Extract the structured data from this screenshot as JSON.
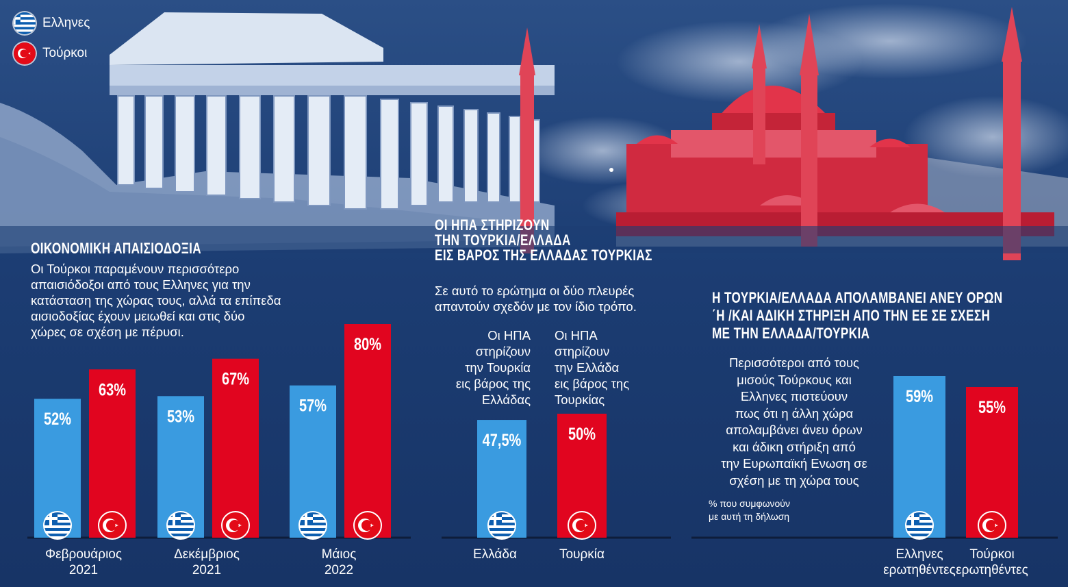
{
  "legend": {
    "greeks": "Ελληνες",
    "turks": "Τούρκοι"
  },
  "colors": {
    "greek_blue": "#3a9be0",
    "turkish_red": "#e1051f",
    "background": "#1a3a6e"
  },
  "section1": {
    "title": "ΟΙΚΟΝΟΜΙΚΗ ΑΠΑΙΣΙΟΔΟΞΙΑ",
    "text_lines": [
      "Οι Τούρκοι παραμένουν περισσότερο",
      "απαισιόδοξοι από τους Ελληνες για την",
      "κατάσταση της χώρας τους, αλλά τα επίπεδα",
      "αισιοδοξίας έχουν μειωθεί και στις δύο",
      "χώρες σε σχέση με πέρυσι."
    ]
  },
  "section2": {
    "title_lines": [
      "ΟΙ ΗΠΑ ΣΤΗΡΙΖΟΥΝ",
      "ΤΗΝ ΤΟΥΡΚΙΑ/ΕΛΛΑΔΑ",
      "ΕΙΣ ΒΑΡΟΣ ΤΗΣ ΕΛΛΑΔΑΣ ΤΟΥΡΚΙΑΣ"
    ],
    "text_lines": [
      "Σε αυτό το ερώτημα οι δύο πλευρές",
      "απαντούν σχεδόν με τον ίδιο τρόπο."
    ],
    "caption_greece": [
      "Οι ΗΠΑ",
      "στηρίζουν",
      "την Τουρκία",
      "εις βάρος της",
      "Ελλάδας"
    ],
    "caption_turkey": [
      "Οι ΗΠΑ",
      "στηρίζουν",
      "την Ελλάδα",
      "εις βάρος της",
      "Τουρκίας"
    ]
  },
  "section3": {
    "title_lines": [
      "Η ΤΟΥΡΚΙΑ/ΕΛΛΑΔΑ ΑΠΟΛΑΜΒΑΝΕΙ ΑΝΕΥ ΟΡΩΝ",
      "΄Η /ΚΑΙ ΑΔΙΚΗ ΣΤΗΡΙΞΗ ΑΠΟ ΤΗΝ ΕΕ ΣΕ ΣΧΕΣΗ",
      "ΜΕ ΤΗΝ ΕΛΛΑΔΑ/ΤΟΥΡΚΙΑ"
    ],
    "text_lines": [
      "Περισσότεροι από τους",
      "μισούς Τούρκους και",
      "Ελληνες πιστεύουν",
      "πως ότι η άλλη χώρα",
      "απολαμβάνει άνευ όρων",
      "και άδικη στήριξη από",
      "την Ευρωπαϊκή Ενωση σε",
      "σχέση με τη χώρα τους"
    ],
    "note_lines": [
      "% που συμφωνούν",
      "με αυτή τη δήλωση"
    ]
  },
  "chart_data": [
    {
      "type": "bar",
      "categories": [
        [
          "Φεβρουάριος",
          "2021"
        ],
        [
          "Δεκέμβριος",
          "2021"
        ],
        [
          "Μάιος",
          "2022"
        ]
      ],
      "series": [
        {
          "name": "Ελληνες",
          "values": [
            52,
            53,
            57
          ],
          "labels": [
            "52%",
            "53%",
            "57%"
          ]
        },
        {
          "name": "Τούρκοι",
          "values": [
            63,
            67,
            80
          ],
          "labels": [
            "63%",
            "67%",
            "80%"
          ]
        }
      ]
    },
    {
      "type": "bar",
      "categories": [
        "Ελλάδα",
        "Τουρκία"
      ],
      "values": [
        47.5,
        50
      ],
      "labels": [
        "47,5%",
        "50%"
      ]
    },
    {
      "type": "bar",
      "categories": [
        [
          "Ελληνες",
          "ερωτηθέντες"
        ],
        [
          "Τούρκοι",
          "ερωτηθέντες"
        ]
      ],
      "values": [
        59,
        55
      ],
      "labels": [
        "59%",
        "55%"
      ]
    }
  ]
}
